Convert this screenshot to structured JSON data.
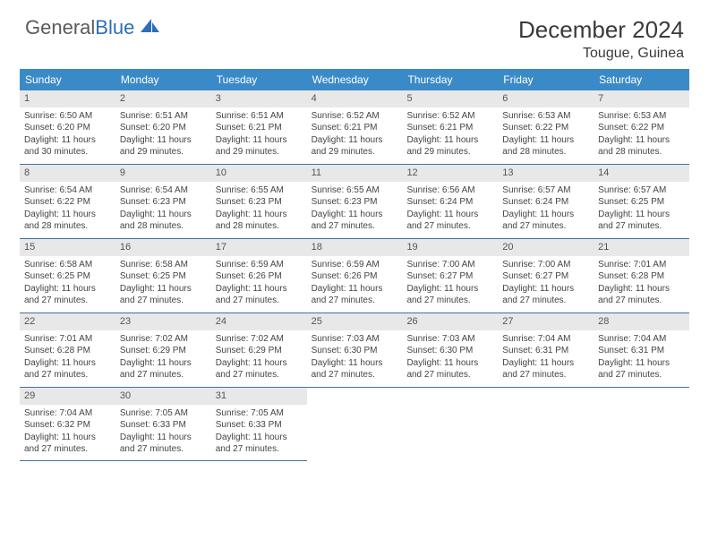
{
  "brand": {
    "name_part1": "General",
    "name_part2": "Blue",
    "text_color": "#5a5a5a",
    "accent_color": "#2d6fb5"
  },
  "title": "December 2024",
  "location": "Tougue, Guinea",
  "header_bg": "#3b8ac8",
  "header_text_color": "#ffffff",
  "daynum_bg": "#e8e8e8",
  "border_color": "#3b72a8",
  "day_headers": [
    "Sunday",
    "Monday",
    "Tuesday",
    "Wednesday",
    "Thursday",
    "Friday",
    "Saturday"
  ],
  "weeks": [
    [
      {
        "n": "1",
        "sr": "6:50 AM",
        "ss": "6:20 PM",
        "dl": "11 hours and 30 minutes."
      },
      {
        "n": "2",
        "sr": "6:51 AM",
        "ss": "6:20 PM",
        "dl": "11 hours and 29 minutes."
      },
      {
        "n": "3",
        "sr": "6:51 AM",
        "ss": "6:21 PM",
        "dl": "11 hours and 29 minutes."
      },
      {
        "n": "4",
        "sr": "6:52 AM",
        "ss": "6:21 PM",
        "dl": "11 hours and 29 minutes."
      },
      {
        "n": "5",
        "sr": "6:52 AM",
        "ss": "6:21 PM",
        "dl": "11 hours and 29 minutes."
      },
      {
        "n": "6",
        "sr": "6:53 AM",
        "ss": "6:22 PM",
        "dl": "11 hours and 28 minutes."
      },
      {
        "n": "7",
        "sr": "6:53 AM",
        "ss": "6:22 PM",
        "dl": "11 hours and 28 minutes."
      }
    ],
    [
      {
        "n": "8",
        "sr": "6:54 AM",
        "ss": "6:22 PM",
        "dl": "11 hours and 28 minutes."
      },
      {
        "n": "9",
        "sr": "6:54 AM",
        "ss": "6:23 PM",
        "dl": "11 hours and 28 minutes."
      },
      {
        "n": "10",
        "sr": "6:55 AM",
        "ss": "6:23 PM",
        "dl": "11 hours and 28 minutes."
      },
      {
        "n": "11",
        "sr": "6:55 AM",
        "ss": "6:23 PM",
        "dl": "11 hours and 27 minutes."
      },
      {
        "n": "12",
        "sr": "6:56 AM",
        "ss": "6:24 PM",
        "dl": "11 hours and 27 minutes."
      },
      {
        "n": "13",
        "sr": "6:57 AM",
        "ss": "6:24 PM",
        "dl": "11 hours and 27 minutes."
      },
      {
        "n": "14",
        "sr": "6:57 AM",
        "ss": "6:25 PM",
        "dl": "11 hours and 27 minutes."
      }
    ],
    [
      {
        "n": "15",
        "sr": "6:58 AM",
        "ss": "6:25 PM",
        "dl": "11 hours and 27 minutes."
      },
      {
        "n": "16",
        "sr": "6:58 AM",
        "ss": "6:25 PM",
        "dl": "11 hours and 27 minutes."
      },
      {
        "n": "17",
        "sr": "6:59 AM",
        "ss": "6:26 PM",
        "dl": "11 hours and 27 minutes."
      },
      {
        "n": "18",
        "sr": "6:59 AM",
        "ss": "6:26 PM",
        "dl": "11 hours and 27 minutes."
      },
      {
        "n": "19",
        "sr": "7:00 AM",
        "ss": "6:27 PM",
        "dl": "11 hours and 27 minutes."
      },
      {
        "n": "20",
        "sr": "7:00 AM",
        "ss": "6:27 PM",
        "dl": "11 hours and 27 minutes."
      },
      {
        "n": "21",
        "sr": "7:01 AM",
        "ss": "6:28 PM",
        "dl": "11 hours and 27 minutes."
      }
    ],
    [
      {
        "n": "22",
        "sr": "7:01 AM",
        "ss": "6:28 PM",
        "dl": "11 hours and 27 minutes."
      },
      {
        "n": "23",
        "sr": "7:02 AM",
        "ss": "6:29 PM",
        "dl": "11 hours and 27 minutes."
      },
      {
        "n": "24",
        "sr": "7:02 AM",
        "ss": "6:29 PM",
        "dl": "11 hours and 27 minutes."
      },
      {
        "n": "25",
        "sr": "7:03 AM",
        "ss": "6:30 PM",
        "dl": "11 hours and 27 minutes."
      },
      {
        "n": "26",
        "sr": "7:03 AM",
        "ss": "6:30 PM",
        "dl": "11 hours and 27 minutes."
      },
      {
        "n": "27",
        "sr": "7:04 AM",
        "ss": "6:31 PM",
        "dl": "11 hours and 27 minutes."
      },
      {
        "n": "28",
        "sr": "7:04 AM",
        "ss": "6:31 PM",
        "dl": "11 hours and 27 minutes."
      }
    ],
    [
      {
        "n": "29",
        "sr": "7:04 AM",
        "ss": "6:32 PM",
        "dl": "11 hours and 27 minutes."
      },
      {
        "n": "30",
        "sr": "7:05 AM",
        "ss": "6:33 PM",
        "dl": "11 hours and 27 minutes."
      },
      {
        "n": "31",
        "sr": "7:05 AM",
        "ss": "6:33 PM",
        "dl": "11 hours and 27 minutes."
      },
      null,
      null,
      null,
      null
    ]
  ],
  "labels": {
    "sunrise": "Sunrise:",
    "sunset": "Sunset:",
    "daylight": "Daylight:"
  }
}
